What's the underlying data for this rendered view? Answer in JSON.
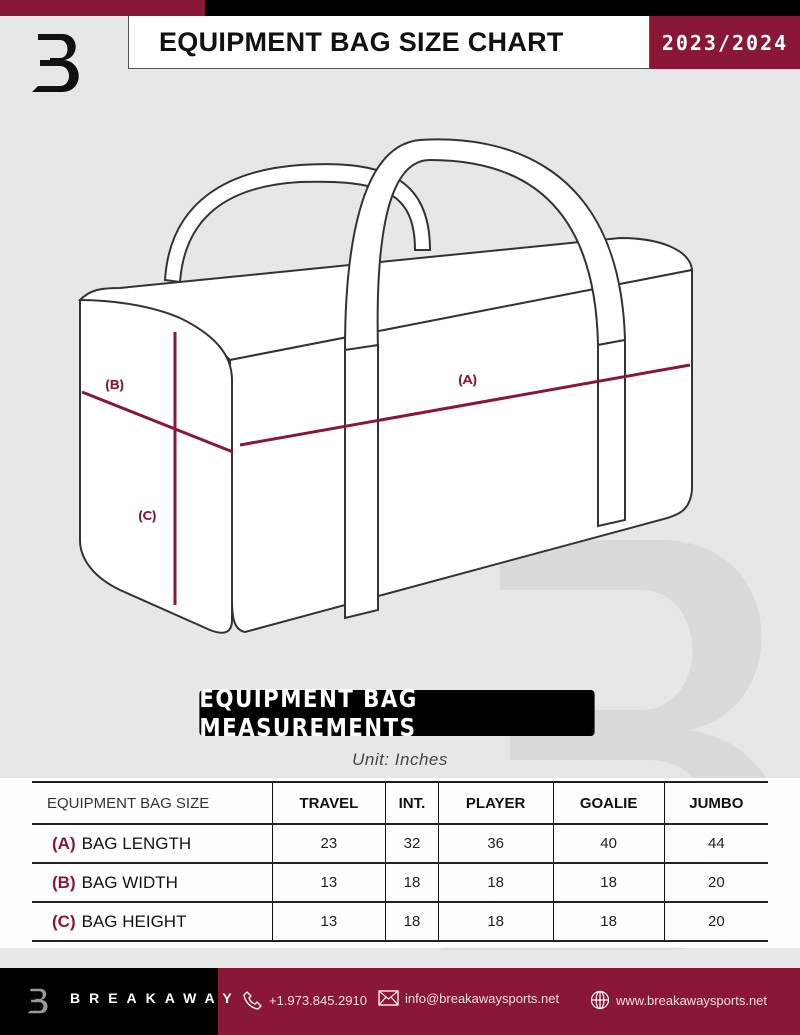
{
  "header": {
    "title": "EQUIPMENT BAG SIZE CHART",
    "season": "2023/2024"
  },
  "colors": {
    "accent": "#8a1735",
    "background": "#e6e7e8"
  },
  "diagram": {
    "label_a": "(A)",
    "label_b": "(B)",
    "label_c": "(C)"
  },
  "section_title": "EQUIPMENT BAG MEASUREMENTS",
  "unit": "Unit: Inches",
  "table": {
    "header": [
      "EQUIPMENT BAG SIZE",
      "TRAVEL",
      "INT.",
      "PLAYER",
      "GOALIE",
      "JUMBO"
    ],
    "rows": [
      {
        "letter": "(A)",
        "label": "BAG LENGTH",
        "values": [
          "23",
          "32",
          "36",
          "40",
          "44"
        ]
      },
      {
        "letter": "(B)",
        "label": "BAG WIDTH",
        "values": [
          "13",
          "18",
          "18",
          "18",
          "20"
        ]
      },
      {
        "letter": "(C)",
        "label": "BAG HEIGHT",
        "values": [
          "13",
          "18",
          "18",
          "18",
          "20"
        ]
      }
    ]
  },
  "footer": {
    "brand": "BREAKAWAY",
    "phone": "+1.973.845.2910",
    "email": "info@breakawaysports.net",
    "website": "www.breakawaysports.net",
    "icons": [
      "phone-icon",
      "mail-icon",
      "globe-icon"
    ]
  }
}
